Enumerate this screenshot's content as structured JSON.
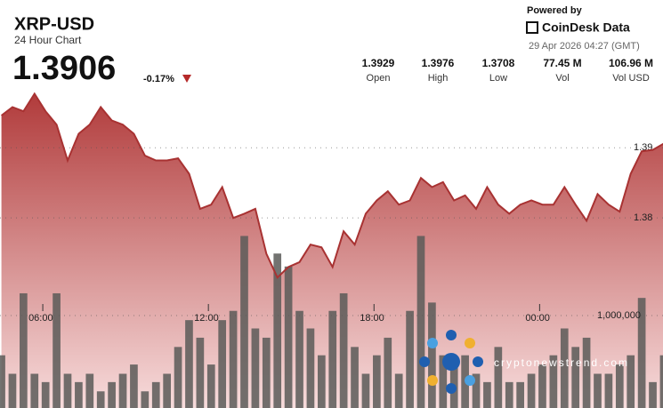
{
  "header": {
    "title": "XRP-USD",
    "subtitle": "24 Hour Chart",
    "price": "1.3906",
    "change": "-0.17%",
    "powered_by": "Powered by",
    "brand": "CoinDesk Data",
    "timestamp": "29 Apr 2026 04:27 (GMT)",
    "stats": [
      {
        "value": "1.3929",
        "label": "Open"
      },
      {
        "value": "1.3976",
        "label": "High"
      },
      {
        "value": "1.3708",
        "label": "Low"
      },
      {
        "value": "77.45 M",
        "label": "Vol"
      },
      {
        "value": "106.96 M",
        "label": "Vol USD"
      }
    ]
  },
  "watermark": "cryptonewstrend.com",
  "chart_data": {
    "type": "area",
    "x": [
      4.5,
      4.9,
      5.3,
      5.7,
      6.1,
      6.5,
      6.9,
      7.3,
      7.7,
      8.1,
      8.5,
      8.9,
      9.3,
      9.7,
      10.1,
      10.5,
      10.9,
      11.3,
      11.7,
      12.1,
      12.5,
      12.9,
      13.3,
      13.7,
      14.1,
      14.5,
      14.9,
      15.3,
      15.7,
      16.1,
      16.5,
      16.9,
      17.3,
      17.7,
      18.1,
      18.5,
      18.9,
      19.3,
      19.7,
      20.1,
      20.5,
      20.9,
      21.3,
      21.7,
      22.1,
      22.5,
      22.9,
      23.3,
      23.7,
      24.1,
      24.5,
      24.9,
      25.3,
      25.7,
      26.1,
      26.5,
      26.9,
      27.3,
      27.7,
      28.1,
      28.5
    ],
    "xlim": [
      4.45,
      28.47
    ],
    "xticks": [
      {
        "value": 6,
        "label": "06:00"
      },
      {
        "value": 12,
        "label": "12:00"
      },
      {
        "value": 18,
        "label": "18:00"
      },
      {
        "value": 24,
        "label": "00:00"
      }
    ],
    "ylim": [
      1.3529,
      1.3984
    ],
    "yticks": [
      1.38,
      1.39
    ],
    "y2lim": [
      0,
      3450000
    ],
    "y2ticks": [
      {
        "value": 1000000,
        "label": "1,000,000"
      }
    ],
    "grid": true,
    "series": [
      {
        "type": "area",
        "color": "#a83232",
        "values": [
          1.3946,
          1.3958,
          1.3952,
          1.3977,
          1.3952,
          1.3933,
          1.3882,
          1.392,
          1.3933,
          1.3958,
          1.3939,
          1.3933,
          1.392,
          1.3889,
          1.3882,
          1.3882,
          1.3885,
          1.3863,
          1.3813,
          1.3819,
          1.3844,
          1.38,
          1.3806,
          1.3813,
          1.3749,
          1.3715,
          1.373,
          1.3737,
          1.3762,
          1.3758,
          1.373,
          1.3781,
          1.3762,
          1.3806,
          1.3825,
          1.3838,
          1.3819,
          1.3825,
          1.3857,
          1.3844,
          1.3851,
          1.3825,
          1.3832,
          1.3813,
          1.3844,
          1.3819,
          1.3806,
          1.3819,
          1.3825,
          1.3819,
          1.3819,
          1.3844,
          1.3819,
          1.3796,
          1.3834,
          1.3819,
          1.3809,
          1.3863,
          1.3895,
          1.3897,
          1.3906
        ]
      },
      {
        "type": "bar",
        "axis": "y2",
        "color": "#5b5b58",
        "values": [
          570000,
          370000,
          1240000,
          370000,
          280000,
          1240000,
          370000,
          280000,
          370000,
          180000,
          280000,
          370000,
          470000,
          180000,
          280000,
          370000,
          660000,
          950000,
          760000,
          470000,
          950000,
          1050000,
          1860000,
          860000,
          760000,
          1670000,
          1530000,
          1050000,
          860000,
          570000,
          1050000,
          1240000,
          660000,
          370000,
          570000,
          760000,
          370000,
          1050000,
          1860000,
          1140000,
          570000,
          470000,
          570000,
          370000,
          280000,
          660000,
          280000,
          280000,
          370000,
          470000,
          570000,
          860000,
          660000,
          760000,
          370000,
          370000,
          470000,
          570000,
          1190000,
          280000,
          570000
        ]
      }
    ]
  }
}
